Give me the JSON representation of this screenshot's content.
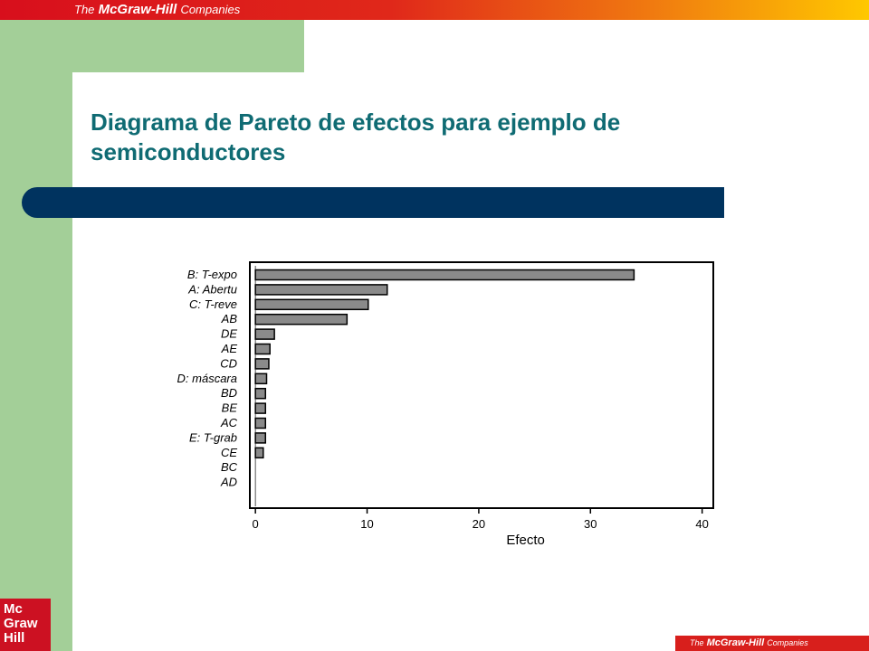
{
  "header": {
    "brand_prefix": "The",
    "brand_name": "McGraw-Hill",
    "brand_suffix": "Companies"
  },
  "slide": {
    "title": "Diagrama de Pareto de efectos para ejemplo de semiconductores"
  },
  "logo": {
    "text": "Mc\nGraw\nHill"
  },
  "footer": {
    "brand_prefix": "The",
    "brand_name": "McGraw-Hill",
    "brand_suffix": "Companies"
  },
  "colors": {
    "banner_red": "#d80f1c",
    "banner_yellow": "#ffc800",
    "sidebar_green": "#a3cf98",
    "title_teal": "#0f6b73",
    "bar_navy": "#00335f",
    "chart_bar_fill": "#8a8a8a"
  },
  "chart_data": {
    "type": "bar",
    "orientation": "horizontal",
    "categories": [
      "B: T-expo",
      "A: Abertu",
      "C: T-reve",
      "AB",
      "DE",
      "AE",
      "CD",
      "D: máscara",
      "BD",
      "BE",
      "AC",
      "E: T-grab",
      "CE",
      "BC",
      "AD"
    ],
    "values": [
      33.9,
      11.8,
      10.1,
      8.2,
      1.7,
      1.3,
      1.2,
      1.0,
      0.9,
      0.9,
      0.9,
      0.9,
      0.7,
      0.0,
      0.0
    ],
    "xlabel": "Efecto",
    "ylabel": "",
    "xlim": [
      -0.5,
      41
    ],
    "xticks": [
      0,
      10,
      20,
      30,
      40
    ],
    "grid": false,
    "legend": "none"
  }
}
